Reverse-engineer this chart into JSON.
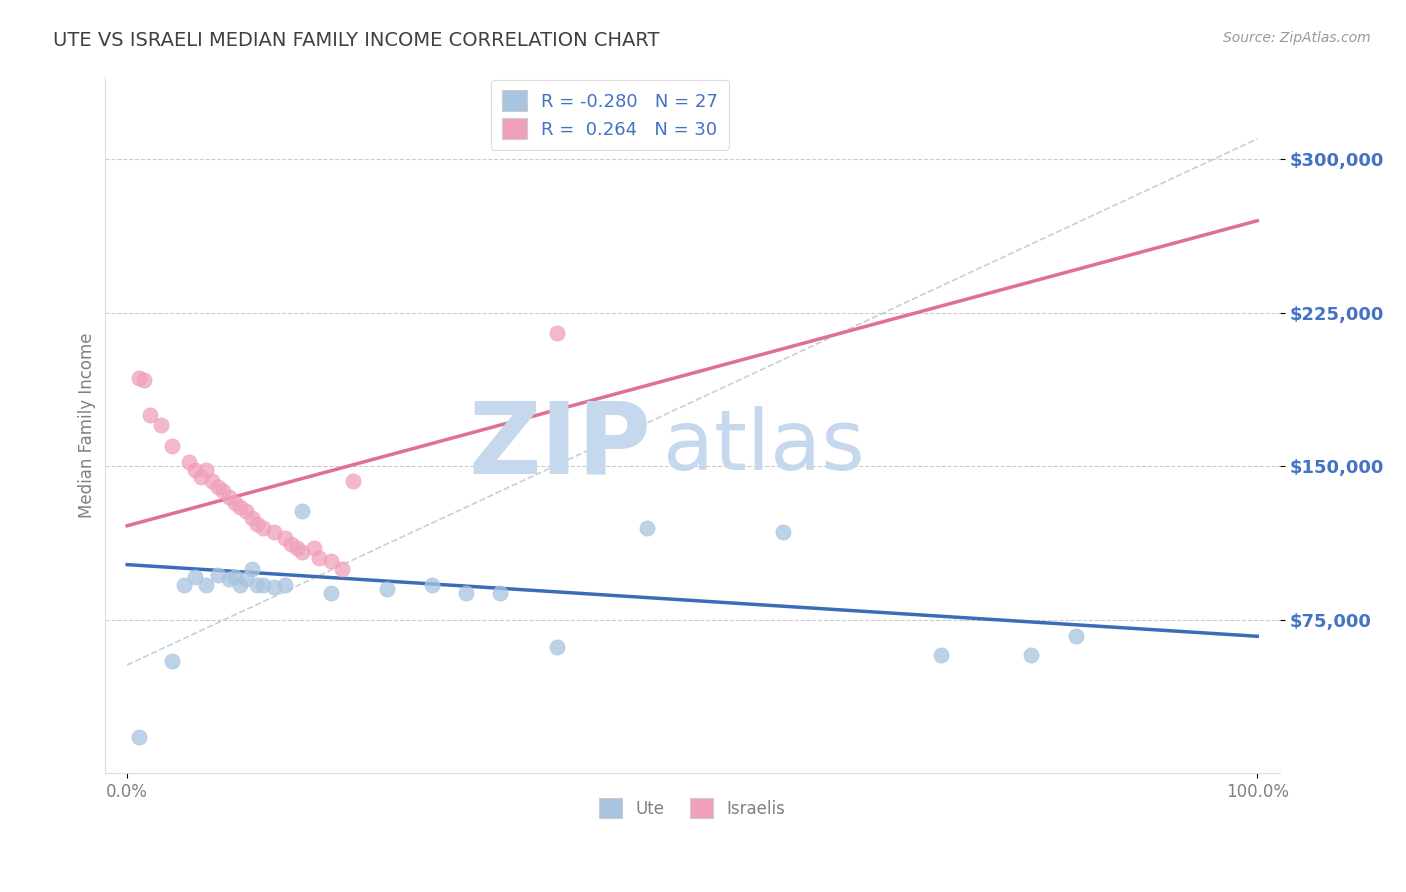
{
  "title": "UTE VS ISRAELI MEDIAN FAMILY INCOME CORRELATION CHART",
  "source": "Source: ZipAtlas.com",
  "ylabel": "Median Family Income",
  "xlim": [
    -0.02,
    1.02
  ],
  "ylim": [
    0,
    340000
  ],
  "yticks": [
    75000,
    150000,
    225000,
    300000
  ],
  "ytick_labels": [
    "$75,000",
    "$150,000",
    "$225,000",
    "$300,000"
  ],
  "xtick_positions": [
    0.0,
    1.0
  ],
  "xtick_labels": [
    "0.0%",
    "100.0%"
  ],
  "background_color": "#ffffff",
  "grid_color": "#cccccc",
  "watermark_zip": "ZIP",
  "watermark_atlas": "atlas",
  "watermark_color_zip": "#c5d8ee",
  "watermark_color_atlas": "#c5d8ee",
  "legend_ute_label": "R = -0.280   N = 27",
  "legend_israeli_label": "R =  0.264   N = 30",
  "ute_color": "#a8c4e0",
  "israeli_color": "#f0a0b8",
  "ute_line_color": "#3b6cb7",
  "israeli_line_color": "#e07090",
  "ref_line_color": "#b8c4d0",
  "title_color": "#404040",
  "axis_label_color": "#808080",
  "tick_label_color": "#4472c4",
  "source_color": "#999999",
  "ute_scatter_x": [
    0.01,
    0.04,
    0.05,
    0.06,
    0.07,
    0.08,
    0.09,
    0.095,
    0.1,
    0.105,
    0.11,
    0.115,
    0.12,
    0.13,
    0.14,
    0.155,
    0.18,
    0.23,
    0.27,
    0.3,
    0.33,
    0.38,
    0.46,
    0.58,
    0.72,
    0.8,
    0.84
  ],
  "ute_scatter_y": [
    18000,
    55000,
    92000,
    96000,
    92000,
    97000,
    95000,
    96000,
    92000,
    95000,
    100000,
    92000,
    92000,
    91000,
    92000,
    128000,
    88000,
    90000,
    92000,
    88000,
    88000,
    62000,
    120000,
    118000,
    58000,
    58000,
    67000
  ],
  "israeli_scatter_x": [
    0.01,
    0.015,
    0.02,
    0.03,
    0.04,
    0.055,
    0.06,
    0.065,
    0.07,
    0.075,
    0.08,
    0.085,
    0.09,
    0.095,
    0.1,
    0.105,
    0.11,
    0.115,
    0.12,
    0.13,
    0.14,
    0.145,
    0.15,
    0.155,
    0.165,
    0.17,
    0.18,
    0.19,
    0.2,
    0.38
  ],
  "israeli_scatter_y": [
    193000,
    192000,
    175000,
    170000,
    160000,
    152000,
    148000,
    145000,
    148000,
    143000,
    140000,
    138000,
    135000,
    132000,
    130000,
    128000,
    125000,
    122000,
    120000,
    118000,
    115000,
    112000,
    110000,
    108000,
    110000,
    105000,
    104000,
    100000,
    143000,
    215000
  ],
  "ute_trend_x": [
    0.0,
    1.0
  ],
  "ute_trend_y": [
    102000,
    67000
  ],
  "israeli_trend_x": [
    0.0,
    1.0
  ],
  "israeli_trend_y": [
    121000,
    270000
  ],
  "ref_line_x": [
    0.0,
    1.0
  ],
  "ref_line_y": [
    53000,
    310000
  ]
}
